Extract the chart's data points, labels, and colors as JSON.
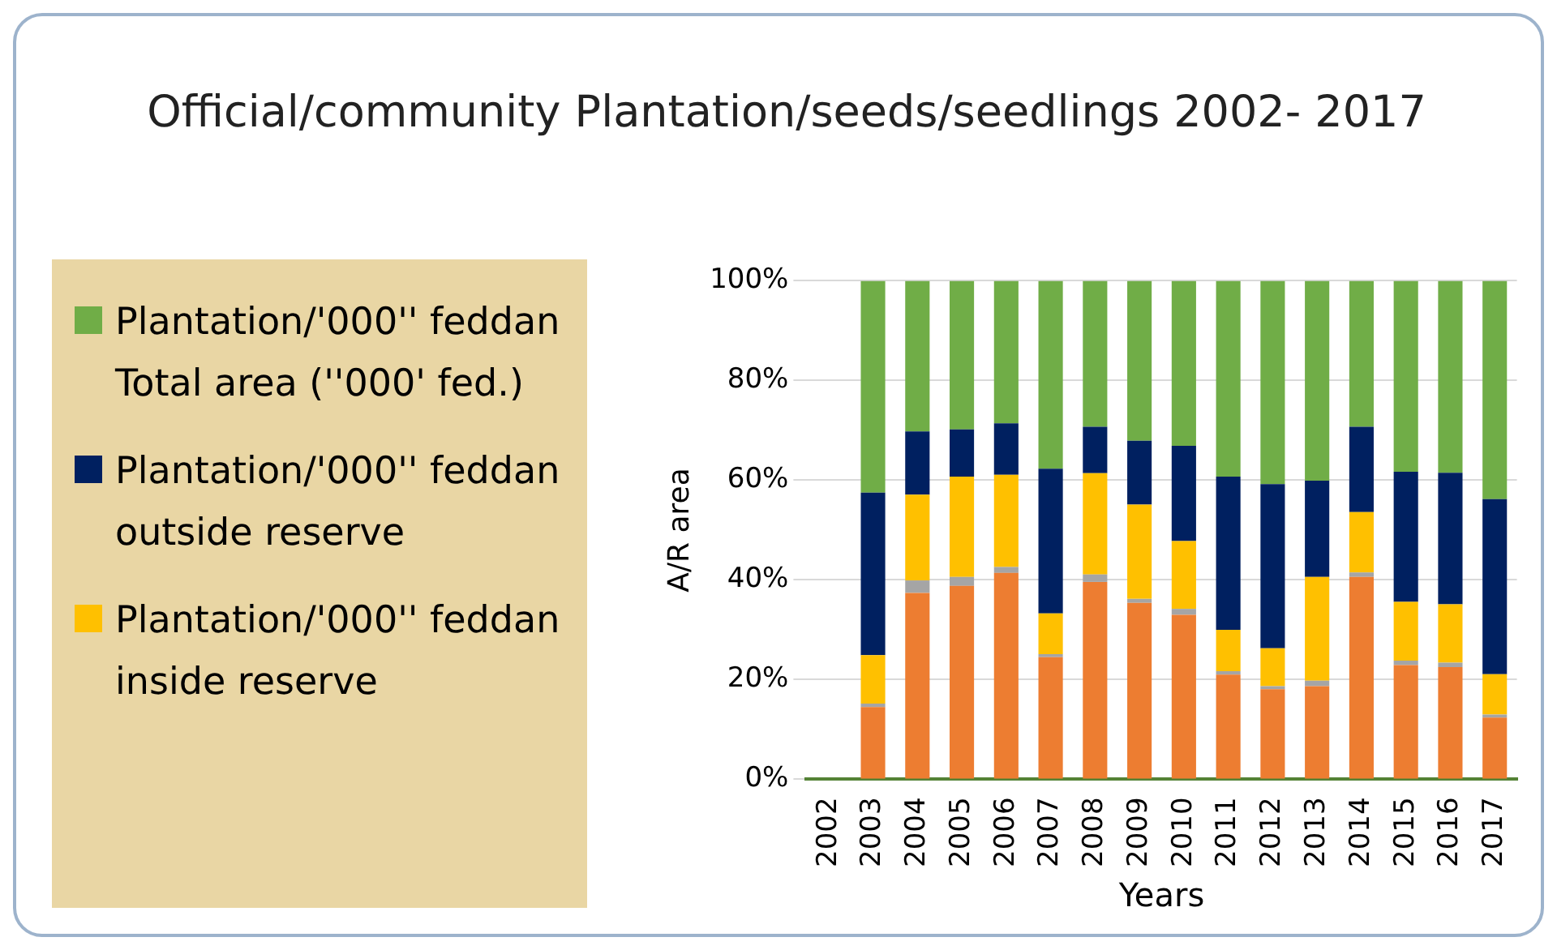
{
  "chart_data": {
    "type": "bar",
    "title": "Official/community Plantation/seeds/seedlings 2002- 2017",
    "xlabel": "Years",
    "ylabel": "A/R area",
    "categories": [
      "2002",
      "2003",
      "2004",
      "2005",
      "2006",
      "2007",
      "2008",
      "2009",
      "2010",
      "2011",
      "2012",
      "2013",
      "2014",
      "2015",
      "2016",
      "2017"
    ],
    "stacked": true,
    "ylim": [
      0,
      100
    ],
    "yticks": [
      {
        "value": 0,
        "label": "0%"
      },
      {
        "value": 20,
        "label": "20%"
      },
      {
        "value": 40,
        "label": "40%"
      },
      {
        "value": 60,
        "label": "60%"
      },
      {
        "value": 80,
        "label": "80%"
      },
      {
        "value": 100,
        "label": "100%"
      }
    ],
    "grid": "y",
    "legend": "left",
    "series": [
      {
        "color": "#ed7d31",
        "values": [
          null,
          14.5,
          37.4,
          38.8,
          41.4,
          24.5,
          39.6,
          35.4,
          33.0,
          21.0,
          18.1,
          18.7,
          40.6,
          22.9,
          22.5,
          12.4
        ]
      },
      {
        "color": "#a5a5a5",
        "values": [
          null,
          0.7,
          2.5,
          1.8,
          1.2,
          0.6,
          1.5,
          0.8,
          1.2,
          0.7,
          0.6,
          1.1,
          0.9,
          0.9,
          0.9,
          0.6
        ]
      },
      {
        "name": "Plantation/'000'' feddan inside reserve",
        "color": "#ffc000",
        "values": [
          null,
          9.7,
          17.2,
          20.1,
          18.5,
          8.2,
          20.3,
          18.9,
          13.6,
          8.3,
          7.6,
          20.8,
          12.1,
          11.8,
          11.7,
          8.1
        ]
      },
      {
        "name": "Plantation/'000'' feddan outside reserve",
        "color": "#002060",
        "values": [
          null,
          32.6,
          12.7,
          9.5,
          10.3,
          29.0,
          9.3,
          12.8,
          19.1,
          30.7,
          32.9,
          19.3,
          17.1,
          26.1,
          26.4,
          35.1
        ]
      },
      {
        "name": "Plantation/'000'' feddan Total area (''000' fed.)",
        "color": "#70ad47",
        "values": [
          null,
          42.5,
          30.2,
          29.8,
          28.6,
          37.7,
          29.3,
          32.1,
          33.1,
          39.3,
          40.8,
          40.1,
          29.3,
          38.3,
          38.5,
          43.8
        ]
      }
    ]
  }
}
